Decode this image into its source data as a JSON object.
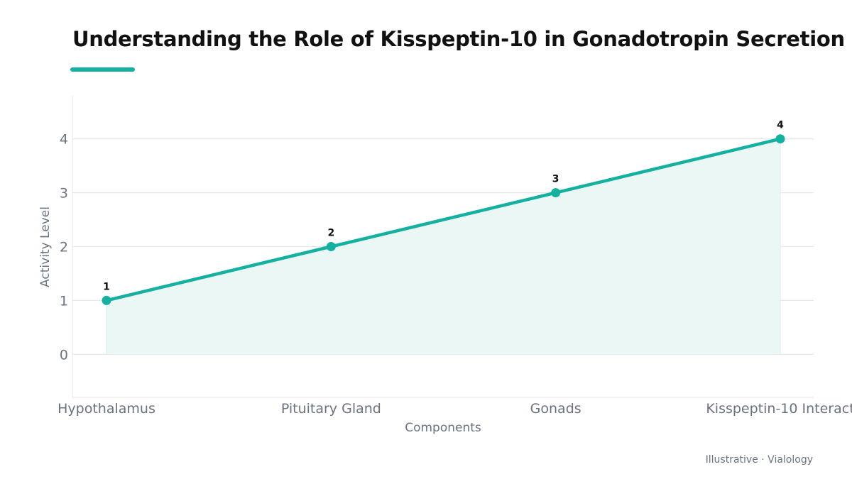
{
  "header": {
    "title": "Understanding the Role of Kisspeptin-10 in Gonadotropin Secretion"
  },
  "footer": {
    "text": "Illustrative · Vialology"
  },
  "colors": {
    "accent": "#14b1a0",
    "area_fill": "#eaf7f4"
  },
  "chart_data": {
    "type": "line",
    "categories": [
      "Hypothalamus",
      "Pituitary Gland",
      "Gonads",
      "Kisspeptin-10 Interact"
    ],
    "values": [
      1,
      2,
      3,
      4
    ],
    "data_labels": [
      "1",
      "2",
      "3",
      "4"
    ],
    "xlabel": "Components",
    "ylabel": "Activity Level",
    "yticks": [
      0,
      1,
      2,
      3,
      4
    ],
    "ylim": [
      -0.8,
      4.8
    ],
    "grid": true,
    "area_fill": true
  }
}
